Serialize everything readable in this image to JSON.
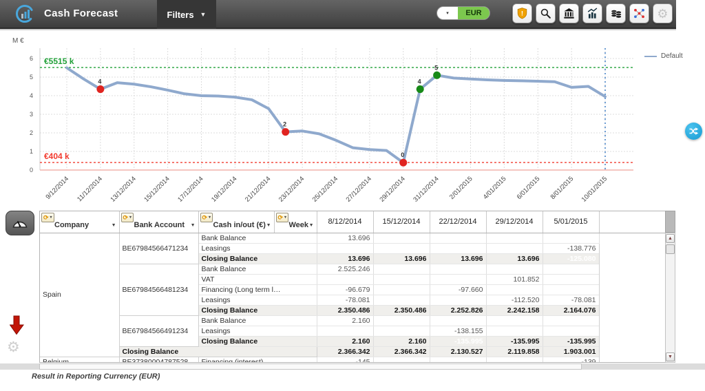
{
  "header": {
    "title": "Cash Forecast",
    "filters_label": "Filters",
    "currency_selected": "EUR",
    "toolbar_icons": [
      "alert-shield",
      "search",
      "bank",
      "chart-stats",
      "cash-stacks",
      "compare-scatter",
      "settings-gear"
    ]
  },
  "chart_data": {
    "type": "line",
    "ylabel": "M €",
    "yticks": [
      0,
      1,
      2,
      3,
      4,
      5,
      6
    ],
    "ylim": [
      0,
      6.5
    ],
    "x_start_date": "9/12/2014",
    "x_interval": "daily",
    "x_tick_labels": [
      "9/12/2014",
      "11/12/2014",
      "13/12/2014",
      "15/12/2014",
      "17/12/2014",
      "19/12/2014",
      "21/12/2014",
      "23/12/2014",
      "25/12/2014",
      "27/12/2014",
      "29/12/2014",
      "31/12/2014",
      "2/01/2015",
      "4/01/2015",
      "6/01/2015",
      "8/01/2015",
      "10/01/2015"
    ],
    "series": [
      {
        "name": "Default",
        "color": "#8fa9cd",
        "values": [
          5.5,
          4.9,
          4.35,
          4.7,
          4.62,
          4.48,
          4.3,
          4.1,
          4.0,
          3.98,
          3.92,
          3.78,
          3.3,
          2.05,
          2.1,
          1.95,
          1.6,
          1.2,
          1.1,
          1.05,
          0.4,
          4.35,
          5.1,
          4.95,
          4.9,
          4.85,
          4.82,
          4.8,
          4.78,
          4.75,
          4.45,
          4.5,
          3.95
        ]
      }
    ],
    "markers": [
      {
        "index": 2,
        "date": "11/12/2014",
        "value": 4.35,
        "label": "4",
        "color": "#e02420"
      },
      {
        "index": 13,
        "date": "22/12/2014",
        "value": 2.05,
        "label": "2",
        "color": "#e02420"
      },
      {
        "index": 20,
        "date": "29/12/2014",
        "value": 0.4,
        "label": "0",
        "color": "#e02420"
      },
      {
        "index": 21,
        "date": "30/12/2014",
        "value": 4.35,
        "label": "4",
        "color": "#178a17"
      },
      {
        "index": 22,
        "date": "31/12/2014",
        "value": 5.1,
        "label": "5",
        "color": "#178a17"
      }
    ],
    "thresholds": [
      {
        "label": "€5515 k",
        "value": 5.515,
        "color": "#21a038"
      },
      {
        "label": "€404 k",
        "value": 0.404,
        "color": "#f23a2e"
      }
    ],
    "today_line": {
      "index": 32,
      "date": "10/01/2015",
      "color": "#6b9bd2"
    },
    "legend_position": "top-right"
  },
  "table": {
    "dimension_columns": [
      {
        "label": "Company"
      },
      {
        "label": "Bank Account"
      },
      {
        "label": "Cash in/out (€)"
      },
      {
        "label": "Week"
      }
    ],
    "date_columns": [
      "8/12/2014",
      "15/12/2014",
      "22/12/2014",
      "29/12/2014",
      "5/01/2015"
    ],
    "rows": [
      {
        "company": {
          "text": "Spain",
          "rowspan": 12
        },
        "account": {
          "text": "BE67984566471234",
          "rowspan": 3
        },
        "label": "Bank Balance",
        "values": [
          "13.696",
          "",
          "",
          "",
          ""
        ]
      },
      {
        "label": "Leasings",
        "values": [
          "",
          "",
          "",
          "",
          "-138.776"
        ]
      },
      {
        "label": "Closing Balance",
        "bold": true,
        "shade": true,
        "values": [
          "13.696",
          "13.696",
          "13.696",
          "13.696",
          "-125.080"
        ],
        "highlight": [
          4
        ]
      },
      {
        "account": {
          "text": "BE67984566481234",
          "rowspan": 5
        },
        "label": "Bank Balance",
        "values": [
          "2.525.246",
          "",
          "",
          "",
          ""
        ]
      },
      {
        "label": "VAT",
        "values": [
          "",
          "",
          "",
          "101.852",
          ""
        ]
      },
      {
        "label": "Financing (Long term l…",
        "values": [
          "-96.679",
          "",
          "-97.660",
          "",
          ""
        ]
      },
      {
        "label": "Leasings",
        "values": [
          "-78.081",
          "",
          "",
          "-112.520",
          "-78.081"
        ]
      },
      {
        "label": "Closing Balance",
        "bold": true,
        "shade": true,
        "values": [
          "2.350.486",
          "2.350.486",
          "2.252.826",
          "2.242.158",
          "2.164.076"
        ]
      },
      {
        "account": {
          "text": "BE67984566491234",
          "rowspan": 3
        },
        "label": "Bank Balance",
        "values": [
          "2.160",
          "",
          "",
          "",
          ""
        ]
      },
      {
        "label": "Leasings",
        "values": [
          "",
          "",
          "-138.155",
          "",
          ""
        ]
      },
      {
        "label": "Closing Balance",
        "bold": true,
        "shade": true,
        "values": [
          "2.160",
          "2.160",
          "-135.995",
          "-135.995",
          "-135.995"
        ],
        "highlight": [
          2
        ]
      },
      {
        "account": {
          "text": "Closing Balance",
          "colspan": 3,
          "bold": true
        },
        "bold": true,
        "shade": true,
        "values": [
          "2.366.342",
          "2.366.342",
          "2.130.527",
          "2.119.858",
          "1.903.001"
        ]
      },
      {
        "company": {
          "text": "Belgium",
          "rowspan": 1
        },
        "account": {
          "text": "BE37380004787528",
          "rowspan": 1
        },
        "label": "Financing (interest)",
        "values": [
          "-145",
          "",
          "",
          "",
          "-139"
        ]
      }
    ]
  },
  "side_controls": {
    "icons": [
      "dashboard-gauge",
      "download-red-arrow",
      "settings-gear"
    ]
  },
  "floating_button": {
    "icon": "shuffle"
  },
  "footer": {
    "note": "Result in Reporting Currency (EUR)"
  }
}
